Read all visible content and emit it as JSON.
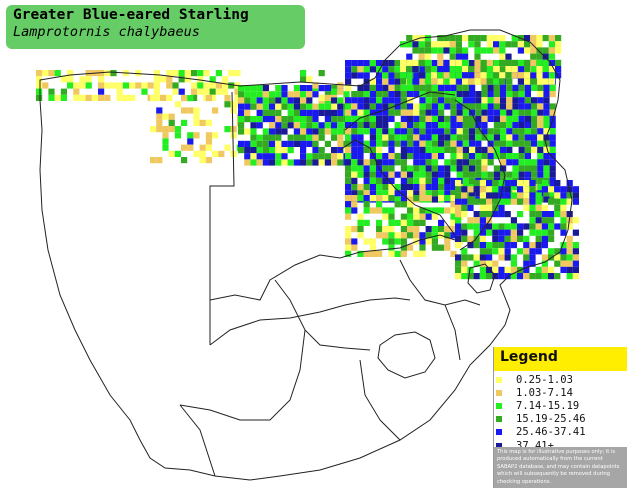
{
  "title": {
    "common_name": "Greater Blue-eared Starling",
    "scientific_name": "Lamprotornis chalybaeus"
  },
  "legend": {
    "heading": "Legend",
    "items": [
      {
        "label": "0.25-1.03",
        "color": "#ffff66"
      },
      {
        "label": "1.03-7.14",
        "color": "#f0c860"
      },
      {
        "label": "7.14-15.19",
        "color": "#22ee22"
      },
      {
        "label": "15.19-25.46",
        "color": "#33aa22"
      },
      {
        "label": "25.46-37.41",
        "color": "#1a1aee"
      },
      {
        "label": "37.41+",
        "color": "#1a1a99"
      }
    ],
    "disclaimer": "This map is for illustrative purposes only; it is produced automatically from the current SABAP2 database, and may contain datapoints which will subsequently be removed during checking operations."
  },
  "map": {
    "land_color": "#ffffff",
    "border_color": "#222222"
  }
}
